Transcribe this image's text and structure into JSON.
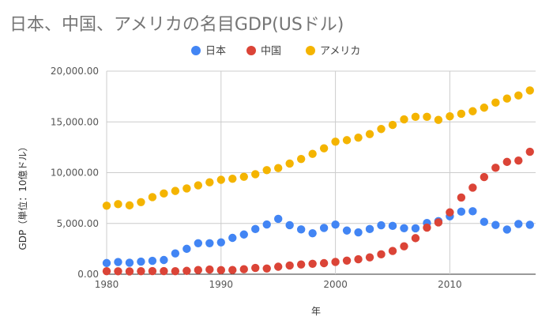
{
  "chart_data": {
    "type": "scatter",
    "title": "日本、中国、アメリカの名目GDP(USドル)",
    "xlabel": "年",
    "ylabel": "GDP（単位：10億ドル）",
    "xlim": [
      1980,
      2017.5
    ],
    "ylim": [
      0,
      20000
    ],
    "x_ticks": [
      1980,
      1990,
      2000,
      2010
    ],
    "y_ticks": [
      0,
      5000,
      10000,
      15000,
      20000
    ],
    "y_tick_labels": [
      "0.00",
      "5,000.00",
      "10,000.00",
      "15,000.00",
      "20,000.00"
    ],
    "x": [
      1980,
      1981,
      1982,
      1983,
      1984,
      1985,
      1986,
      1987,
      1988,
      1989,
      1990,
      1991,
      1992,
      1993,
      1994,
      1995,
      1996,
      1997,
      1998,
      1999,
      2000,
      2001,
      2002,
      2003,
      2004,
      2005,
      2006,
      2007,
      2008,
      2009,
      2010,
      2011,
      2012,
      2013,
      2014,
      2015,
      2016,
      2017
    ],
    "legend_position": "top",
    "series": [
      {
        "name": "日本",
        "color": "#4285f4",
        "values": [
          1100,
          1200,
          1130,
          1240,
          1320,
          1400,
          2050,
          2500,
          3050,
          3050,
          3140,
          3580,
          3910,
          4450,
          4900,
          5450,
          4830,
          4410,
          4030,
          4560,
          4890,
          4300,
          4120,
          4450,
          4820,
          4760,
          4530,
          4520,
          5040,
          5230,
          5700,
          6160,
          6200,
          5160,
          4850,
          4400,
          4950,
          4870
        ]
      },
      {
        "name": "中国",
        "color": "#db4437",
        "values": [
          300,
          290,
          280,
          300,
          310,
          310,
          300,
          330,
          410,
          460,
          400,
          410,
          490,
          620,
          560,
          740,
          860,
          960,
          1030,
          1090,
          1210,
          1340,
          1470,
          1660,
          1960,
          2290,
          2750,
          3550,
          4590,
          5100,
          6090,
          7550,
          8530,
          9570,
          10480,
          11060,
          11190,
          12060
        ]
      },
      {
        "name": "アメリカ",
        "color": "#f4b400",
        "values": [
          6750,
          6900,
          6780,
          7100,
          7590,
          7950,
          8200,
          8450,
          8750,
          9050,
          9300,
          9400,
          9600,
          9850,
          10250,
          10450,
          10900,
          11350,
          11850,
          12400,
          13050,
          13200,
          13450,
          13800,
          14300,
          14700,
          15250,
          15500,
          15500,
          15200,
          15550,
          15800,
          16050,
          16400,
          16900,
          17300,
          17600,
          18100
        ]
      }
    ]
  }
}
